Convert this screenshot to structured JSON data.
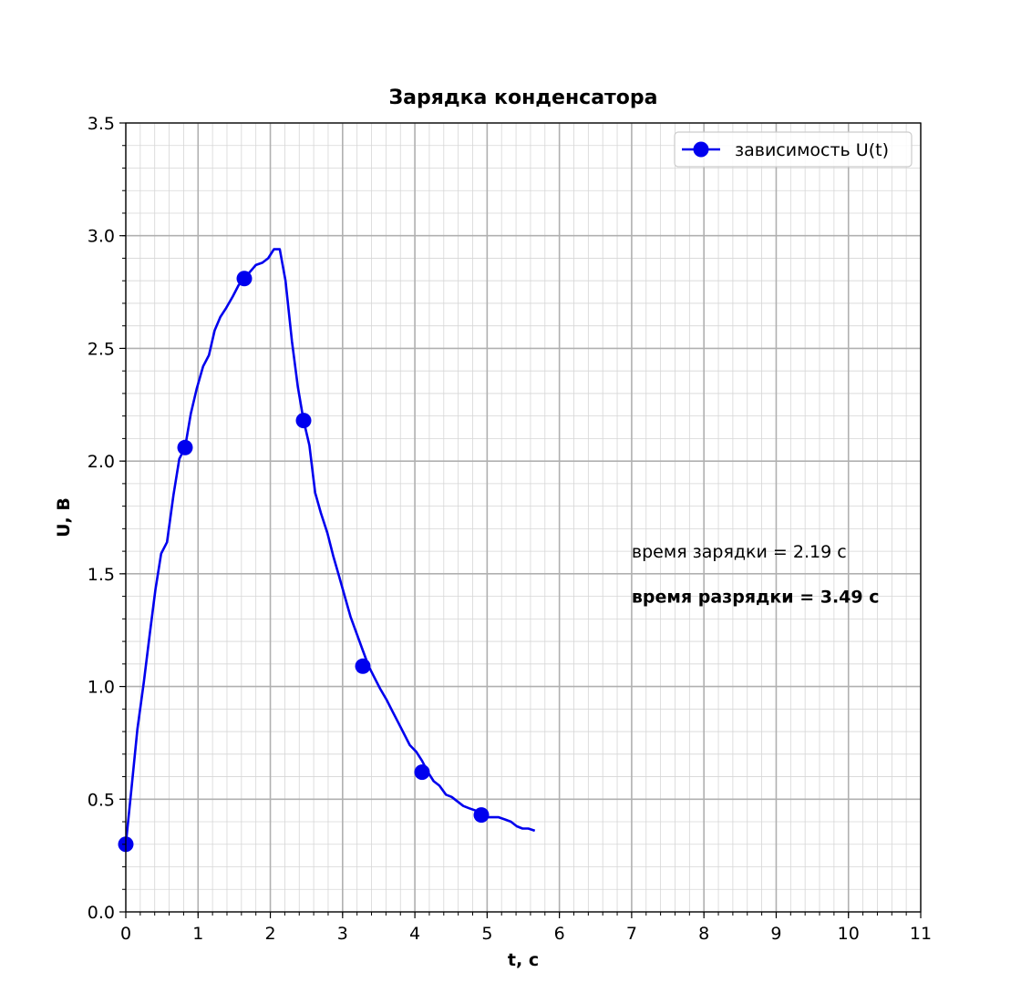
{
  "chart_data": {
    "type": "line",
    "title": "Зарядка конденсатора",
    "xlabel": "t, с",
    "ylabel": "U, В",
    "xlim": [
      0,
      11
    ],
    "ylim": [
      0,
      3.5
    ],
    "x_ticks": [
      0,
      1,
      2,
      3,
      4,
      5,
      6,
      7,
      8,
      9,
      10,
      11
    ],
    "y_ticks": [
      0.0,
      0.5,
      1.0,
      1.5,
      2.0,
      2.5,
      3.0,
      3.5
    ],
    "x_tick_labels": [
      "0",
      "1",
      "2",
      "3",
      "4",
      "5",
      "6",
      "7",
      "8",
      "9",
      "10",
      "11"
    ],
    "y_tick_labels": [
      "0.0",
      "0.5",
      "1.0",
      "1.5",
      "2.0",
      "2.5",
      "3.0",
      "3.5"
    ],
    "grid": true,
    "minor_grid": true,
    "legend_position": "top-right",
    "series": [
      {
        "name": "зависимость U(t)",
        "color": "#0000ee",
        "x": [
          0.0,
          0.08,
          0.16,
          0.25,
          0.33,
          0.41,
          0.49,
          0.57,
          0.66,
          0.74,
          0.82,
          0.9,
          0.98,
          1.07,
          1.15,
          1.23,
          1.31,
          1.39,
          1.48,
          1.56,
          1.64,
          1.72,
          1.8,
          1.89,
          1.97,
          2.05,
          2.13,
          2.21,
          2.3,
          2.38,
          2.46,
          2.54,
          2.62,
          2.7,
          2.79,
          2.87,
          2.95,
          3.03,
          3.11,
          3.2,
          3.28,
          3.36,
          3.44,
          3.52,
          3.61,
          3.69,
          3.77,
          3.85,
          3.93,
          4.02,
          4.1,
          4.18,
          4.26,
          4.34,
          4.43,
          4.51,
          4.59,
          4.67,
          4.75,
          4.84,
          4.92,
          5.0,
          5.08,
          5.16,
          5.25,
          5.33,
          5.41,
          5.49,
          5.57,
          5.66
        ],
        "y": [
          0.3,
          0.55,
          0.81,
          1.02,
          1.23,
          1.43,
          1.59,
          1.64,
          1.85,
          2.01,
          2.06,
          2.21,
          2.32,
          2.42,
          2.47,
          2.58,
          2.64,
          2.68,
          2.73,
          2.78,
          2.81,
          2.84,
          2.87,
          2.88,
          2.9,
          2.94,
          2.94,
          2.8,
          2.53,
          2.33,
          2.18,
          2.07,
          1.86,
          1.77,
          1.68,
          1.58,
          1.49,
          1.4,
          1.31,
          1.23,
          1.16,
          1.09,
          1.04,
          0.99,
          0.94,
          0.89,
          0.84,
          0.79,
          0.74,
          0.71,
          0.67,
          0.62,
          0.58,
          0.56,
          0.52,
          0.51,
          0.49,
          0.47,
          0.46,
          0.45,
          0.43,
          0.42,
          0.42,
          0.42,
          0.41,
          0.4,
          0.38,
          0.37,
          0.37,
          0.36
        ],
        "markers": {
          "x": [
            0.0,
            0.82,
            1.64,
            2.46,
            3.28,
            4.1,
            4.92
          ],
          "y": [
            0.3,
            2.06,
            2.81,
            2.18,
            1.09,
            0.62,
            0.43
          ]
        }
      }
    ],
    "annotations": [
      {
        "text": "время зарядки = 2.19 с",
        "x": 7.0,
        "y": 1.6,
        "bold": false
      },
      {
        "text": "время разрядки = 3.49 с",
        "x": 7.0,
        "y": 1.4,
        "bold": true
      }
    ]
  }
}
